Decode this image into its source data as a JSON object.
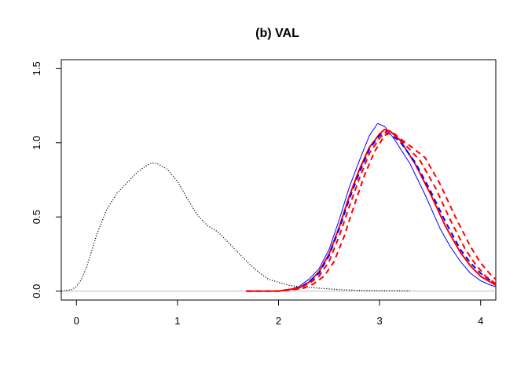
{
  "chart_data": {
    "type": "line",
    "title": "(b) VAL",
    "xlabel": "",
    "ylabel": "",
    "xlim": [
      -0.15,
      4.15
    ],
    "ylim": [
      -0.06,
      1.56
    ],
    "x_ticks": [
      0,
      1,
      2,
      3,
      4
    ],
    "x_tick_labels": [
      "0",
      "1",
      "2",
      "3",
      "4"
    ],
    "y_ticks": [
      0.0,
      0.5,
      1.0,
      1.5
    ],
    "y_tick_labels": [
      "0.0",
      "0.5",
      "1.0",
      "1.5"
    ],
    "grid": false,
    "legend": "none",
    "reference_line": {
      "y": 0,
      "color": "#bdbdbd"
    },
    "series": [
      {
        "style": "dotted",
        "color": "#000000",
        "width": 1.2,
        "points": [
          [
            -0.15,
            0.0
          ],
          [
            -0.05,
            0.01
          ],
          [
            0.0,
            0.03
          ],
          [
            0.05,
            0.08
          ],
          [
            0.1,
            0.16
          ],
          [
            0.15,
            0.27
          ],
          [
            0.2,
            0.38
          ],
          [
            0.3,
            0.55
          ],
          [
            0.4,
            0.66
          ],
          [
            0.5,
            0.73
          ],
          [
            0.6,
            0.8
          ],
          [
            0.7,
            0.85
          ],
          [
            0.75,
            0.865
          ],
          [
            0.8,
            0.86
          ],
          [
            0.9,
            0.82
          ],
          [
            1.0,
            0.74
          ],
          [
            1.1,
            0.62
          ],
          [
            1.2,
            0.51
          ],
          [
            1.3,
            0.44
          ],
          [
            1.4,
            0.4
          ],
          [
            1.5,
            0.33
          ],
          [
            1.6,
            0.26
          ],
          [
            1.7,
            0.19
          ],
          [
            1.8,
            0.13
          ],
          [
            1.9,
            0.08
          ],
          [
            2.0,
            0.06
          ],
          [
            2.1,
            0.04
          ],
          [
            2.2,
            0.03
          ],
          [
            2.4,
            0.02
          ],
          [
            2.6,
            0.01
          ],
          [
            2.8,
            0.005
          ],
          [
            3.0,
            0.003
          ],
          [
            3.3,
            0.002
          ]
        ]
      },
      {
        "style": "solid",
        "color": "#0000ff",
        "width": 1.0,
        "points": [
          [
            1.68,
            0.0
          ],
          [
            2.0,
            0.0
          ],
          [
            2.1,
            0.01
          ],
          [
            2.2,
            0.03
          ],
          [
            2.3,
            0.08
          ],
          [
            2.4,
            0.15
          ],
          [
            2.5,
            0.28
          ],
          [
            2.6,
            0.48
          ],
          [
            2.7,
            0.7
          ],
          [
            2.8,
            0.88
          ],
          [
            2.9,
            1.05
          ],
          [
            2.98,
            1.13
          ],
          [
            3.05,
            1.11
          ],
          [
            3.15,
            1.02
          ],
          [
            3.3,
            0.86
          ],
          [
            3.45,
            0.65
          ],
          [
            3.6,
            0.42
          ],
          [
            3.7,
            0.3
          ],
          [
            3.8,
            0.2
          ],
          [
            3.9,
            0.12
          ],
          [
            4.0,
            0.07
          ],
          [
            4.1,
            0.04
          ],
          [
            4.15,
            0.03
          ]
        ]
      },
      {
        "style": "solid",
        "color": "#ff0000",
        "width": 2.0,
        "points": [
          [
            1.68,
            0.0
          ],
          [
            2.0,
            0.0
          ],
          [
            2.1,
            0.01
          ],
          [
            2.2,
            0.02
          ],
          [
            2.3,
            0.06
          ],
          [
            2.4,
            0.13
          ],
          [
            2.5,
            0.25
          ],
          [
            2.6,
            0.43
          ],
          [
            2.7,
            0.64
          ],
          [
            2.8,
            0.82
          ],
          [
            2.9,
            0.97
          ],
          [
            3.0,
            1.06
          ],
          [
            3.05,
            1.09
          ],
          [
            3.1,
            1.08
          ],
          [
            3.2,
            1.02
          ],
          [
            3.35,
            0.86
          ],
          [
            3.5,
            0.66
          ],
          [
            3.65,
            0.44
          ],
          [
            3.8,
            0.26
          ],
          [
            3.9,
            0.17
          ],
          [
            4.0,
            0.1
          ],
          [
            4.1,
            0.06
          ],
          [
            4.15,
            0.04
          ]
        ]
      },
      {
        "style": "dashed",
        "color": "#0000ff",
        "width": 2.0,
        "points": [
          [
            1.68,
            0.0
          ],
          [
            2.0,
            0.0
          ],
          [
            2.1,
            0.01
          ],
          [
            2.2,
            0.02
          ],
          [
            2.3,
            0.06
          ],
          [
            2.4,
            0.12
          ],
          [
            2.5,
            0.24
          ],
          [
            2.6,
            0.42
          ],
          [
            2.7,
            0.62
          ],
          [
            2.8,
            0.8
          ],
          [
            2.9,
            0.96
          ],
          [
            3.0,
            1.05
          ],
          [
            3.05,
            1.07
          ],
          [
            3.1,
            1.06
          ],
          [
            3.2,
            1.01
          ],
          [
            3.35,
            0.87
          ],
          [
            3.5,
            0.68
          ],
          [
            3.65,
            0.47
          ],
          [
            3.8,
            0.28
          ],
          [
            3.9,
            0.19
          ],
          [
            4.0,
            0.12
          ],
          [
            4.1,
            0.07
          ],
          [
            4.15,
            0.05
          ]
        ]
      },
      {
        "style": "dashed",
        "color": "#ff0000",
        "width": 2.0,
        "points": [
          [
            1.68,
            0.0
          ],
          [
            2.0,
            0.0
          ],
          [
            2.1,
            0.01
          ],
          [
            2.2,
            0.02
          ],
          [
            2.3,
            0.05
          ],
          [
            2.4,
            0.1
          ],
          [
            2.5,
            0.2
          ],
          [
            2.6,
            0.37
          ],
          [
            2.7,
            0.57
          ],
          [
            2.8,
            0.76
          ],
          [
            2.9,
            0.93
          ],
          [
            3.0,
            1.03
          ],
          [
            3.07,
            1.08
          ],
          [
            3.15,
            1.06
          ],
          [
            3.25,
            0.99
          ],
          [
            3.4,
            0.88
          ],
          [
            3.55,
            0.7
          ],
          [
            3.7,
            0.48
          ],
          [
            3.85,
            0.28
          ],
          [
            3.95,
            0.18
          ],
          [
            4.05,
            0.1
          ],
          [
            4.15,
            0.05
          ]
        ]
      },
      {
        "style": "dashed",
        "color": "#ff0000",
        "width": 2.0,
        "points": [
          [
            1.68,
            0.0
          ],
          [
            2.0,
            0.0
          ],
          [
            2.15,
            0.01
          ],
          [
            2.25,
            0.02
          ],
          [
            2.35,
            0.05
          ],
          [
            2.45,
            0.1
          ],
          [
            2.55,
            0.2
          ],
          [
            2.65,
            0.37
          ],
          [
            2.75,
            0.58
          ],
          [
            2.85,
            0.78
          ],
          [
            2.95,
            0.94
          ],
          [
            3.05,
            1.05
          ],
          [
            3.12,
            1.07
          ],
          [
            3.2,
            1.03
          ],
          [
            3.3,
            0.98
          ],
          [
            3.45,
            0.9
          ],
          [
            3.6,
            0.72
          ],
          [
            3.75,
            0.5
          ],
          [
            3.9,
            0.3
          ],
          [
            4.0,
            0.19
          ],
          [
            4.1,
            0.11
          ],
          [
            4.15,
            0.08
          ]
        ]
      }
    ]
  }
}
